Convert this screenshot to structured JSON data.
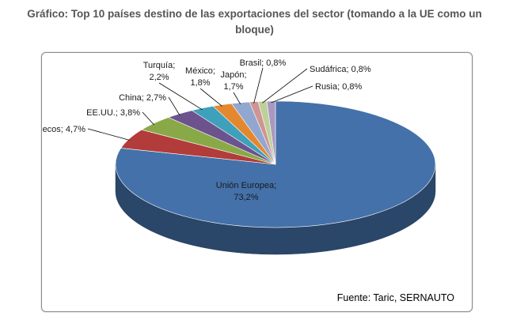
{
  "title_line1": "Gráfico: Top 10 países destino de las exportaciones del sector (tomando a la UE como un",
  "title_line2": "bloque)",
  "source": "Fuente: Taric, SERNAUTO",
  "chart_data": {
    "type": "pie",
    "title": "Gráfico: Top 10 países destino de las exportaciones del sector (tomando a la UE como un bloque)",
    "slices": [
      {
        "label": "Unión Europea",
        "value": 73.2,
        "text": "73,2%",
        "color": "#4471a9"
      },
      {
        "label": "Marruecos",
        "value": 4.7,
        "text": "4,7%",
        "color": "#b23c3a"
      },
      {
        "label": "EE.UU.",
        "value": 3.8,
        "text": "3,8%",
        "color": "#89a948"
      },
      {
        "label": "China",
        "value": 2.7,
        "text": "2,7%",
        "color": "#6c538e"
      },
      {
        "label": "Turquía",
        "value": 2.2,
        "text": "2,2%",
        "color": "#3fa0ba"
      },
      {
        "label": "México",
        "value": 1.8,
        "text": "1,8%",
        "color": "#e4882f"
      },
      {
        "label": "Japón",
        "value": 1.7,
        "text": "1,7%",
        "color": "#92a7cf"
      },
      {
        "label": "Brasil",
        "value": 0.8,
        "text": "0,8%",
        "color": "#cf9594"
      },
      {
        "label": "Sudáfrica",
        "value": 0.8,
        "text": "0,8%",
        "color": "#bcd19a"
      },
      {
        "label": "Rusia",
        "value": 0.8,
        "text": "0,8%",
        "color": "#a999c2"
      }
    ]
  }
}
